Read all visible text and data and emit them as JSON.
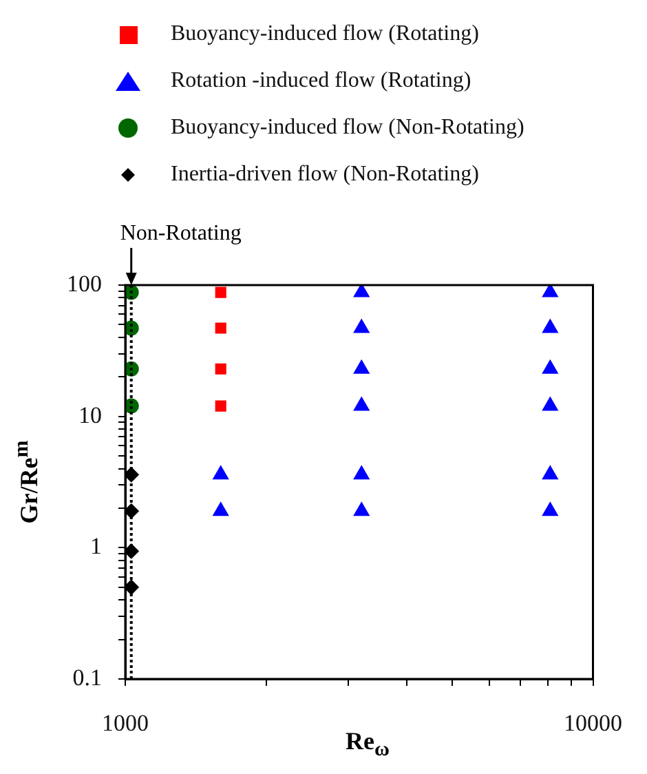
{
  "chart_data": {
    "type": "scatter",
    "xlabel": "Re$_{ω}$",
    "ylabel": "Gr/Re$^{m}$",
    "log": "xy",
    "grid": false,
    "legend": "top left",
    "xlim": [
      1000,
      10000
    ],
    "xticks": [
      1000,
      {
        "value": 2000,
        "label": null
      },
      {
        "value": 3000,
        "label": null
      },
      {
        "value": 4000,
        "label": null
      },
      {
        "value": 5000,
        "label": null
      },
      {
        "value": 6000,
        "label": null
      },
      {
        "value": 7000,
        "label": null
      },
      {
        "value": 8000,
        "label": null
      },
      {
        "value": 9000,
        "label": null
      },
      10000
    ],
    "ylim": [
      0.1,
      100
    ],
    "yticks": [
      0.1,
      {
        "value": 0.2,
        "label": null
      },
      {
        "value": 0.3,
        "label": null
      },
      {
        "value": 0.4,
        "label": null
      },
      {
        "value": 0.5,
        "label": null
      },
      {
        "value": 0.6,
        "label": null
      },
      {
        "value": 0.7,
        "label": null
      },
      {
        "value": 0.8,
        "label": null
      },
      {
        "value": 0.9,
        "label": null
      },
      1,
      {
        "value": 2,
        "label": null
      },
      {
        "value": 3,
        "label": null
      },
      {
        "value": 4,
        "label": null
      },
      {
        "value": 5,
        "label": null
      },
      {
        "value": 6,
        "label": null
      },
      {
        "value": 7,
        "label": null
      },
      {
        "value": 8,
        "label": null
      },
      {
        "value": 9,
        "label": null
      },
      10,
      {
        "value": 20,
        "label": null
      },
      {
        "value": 30,
        "label": null
      },
      {
        "value": 40,
        "label": null
      },
      {
        "value": 50,
        "label": null
      },
      {
        "value": 60,
        "label": null
      },
      {
        "value": 70,
        "label": null
      },
      {
        "value": 80,
        "label": null
      },
      {
        "value": 90,
        "label": null
      },
      100
    ],
    "ref_lines": [
      {
        "axis": "x",
        "value": 1030,
        "label": "Non-Rotating",
        "line_style": "dotted",
        "color": "#000000"
      }
    ],
    "series": [
      {
        "name": "Buoyancy-induced flow (Rotating)",
        "color": "#ff0000",
        "marker": "square",
        "x": [
          1600,
          1600,
          1600,
          1600
        ],
        "values": [
          88,
          47,
          23,
          12
        ]
      },
      {
        "name": "Rotation -induced flow (Rotating)",
        "color": "#0000ff",
        "marker": "triangle",
        "x": [
          1600,
          1600,
          3200,
          3200,
          3200,
          3200,
          3200,
          3200,
          8100,
          8100,
          8100,
          8100,
          8100,
          8100
        ],
        "values": [
          3.6,
          1.9,
          88,
          47,
          23,
          12,
          3.6,
          1.9,
          88,
          47,
          23,
          12,
          3.6,
          1.9
        ]
      },
      {
        "name": "Buoyancy-induced flow (Non-Rotating)",
        "color": "#006600",
        "marker": "circle",
        "x": [
          1030,
          1030,
          1030,
          1030
        ],
        "values": [
          88,
          47,
          23,
          12
        ]
      },
      {
        "name": "Inertia-driven flow (Non-Rotating)",
        "color": "#000000",
        "marker": "diamond",
        "x": [
          1030,
          1030,
          1030,
          1030
        ],
        "values": [
          3.6,
          1.9,
          0.94,
          0.5
        ]
      }
    ]
  }
}
